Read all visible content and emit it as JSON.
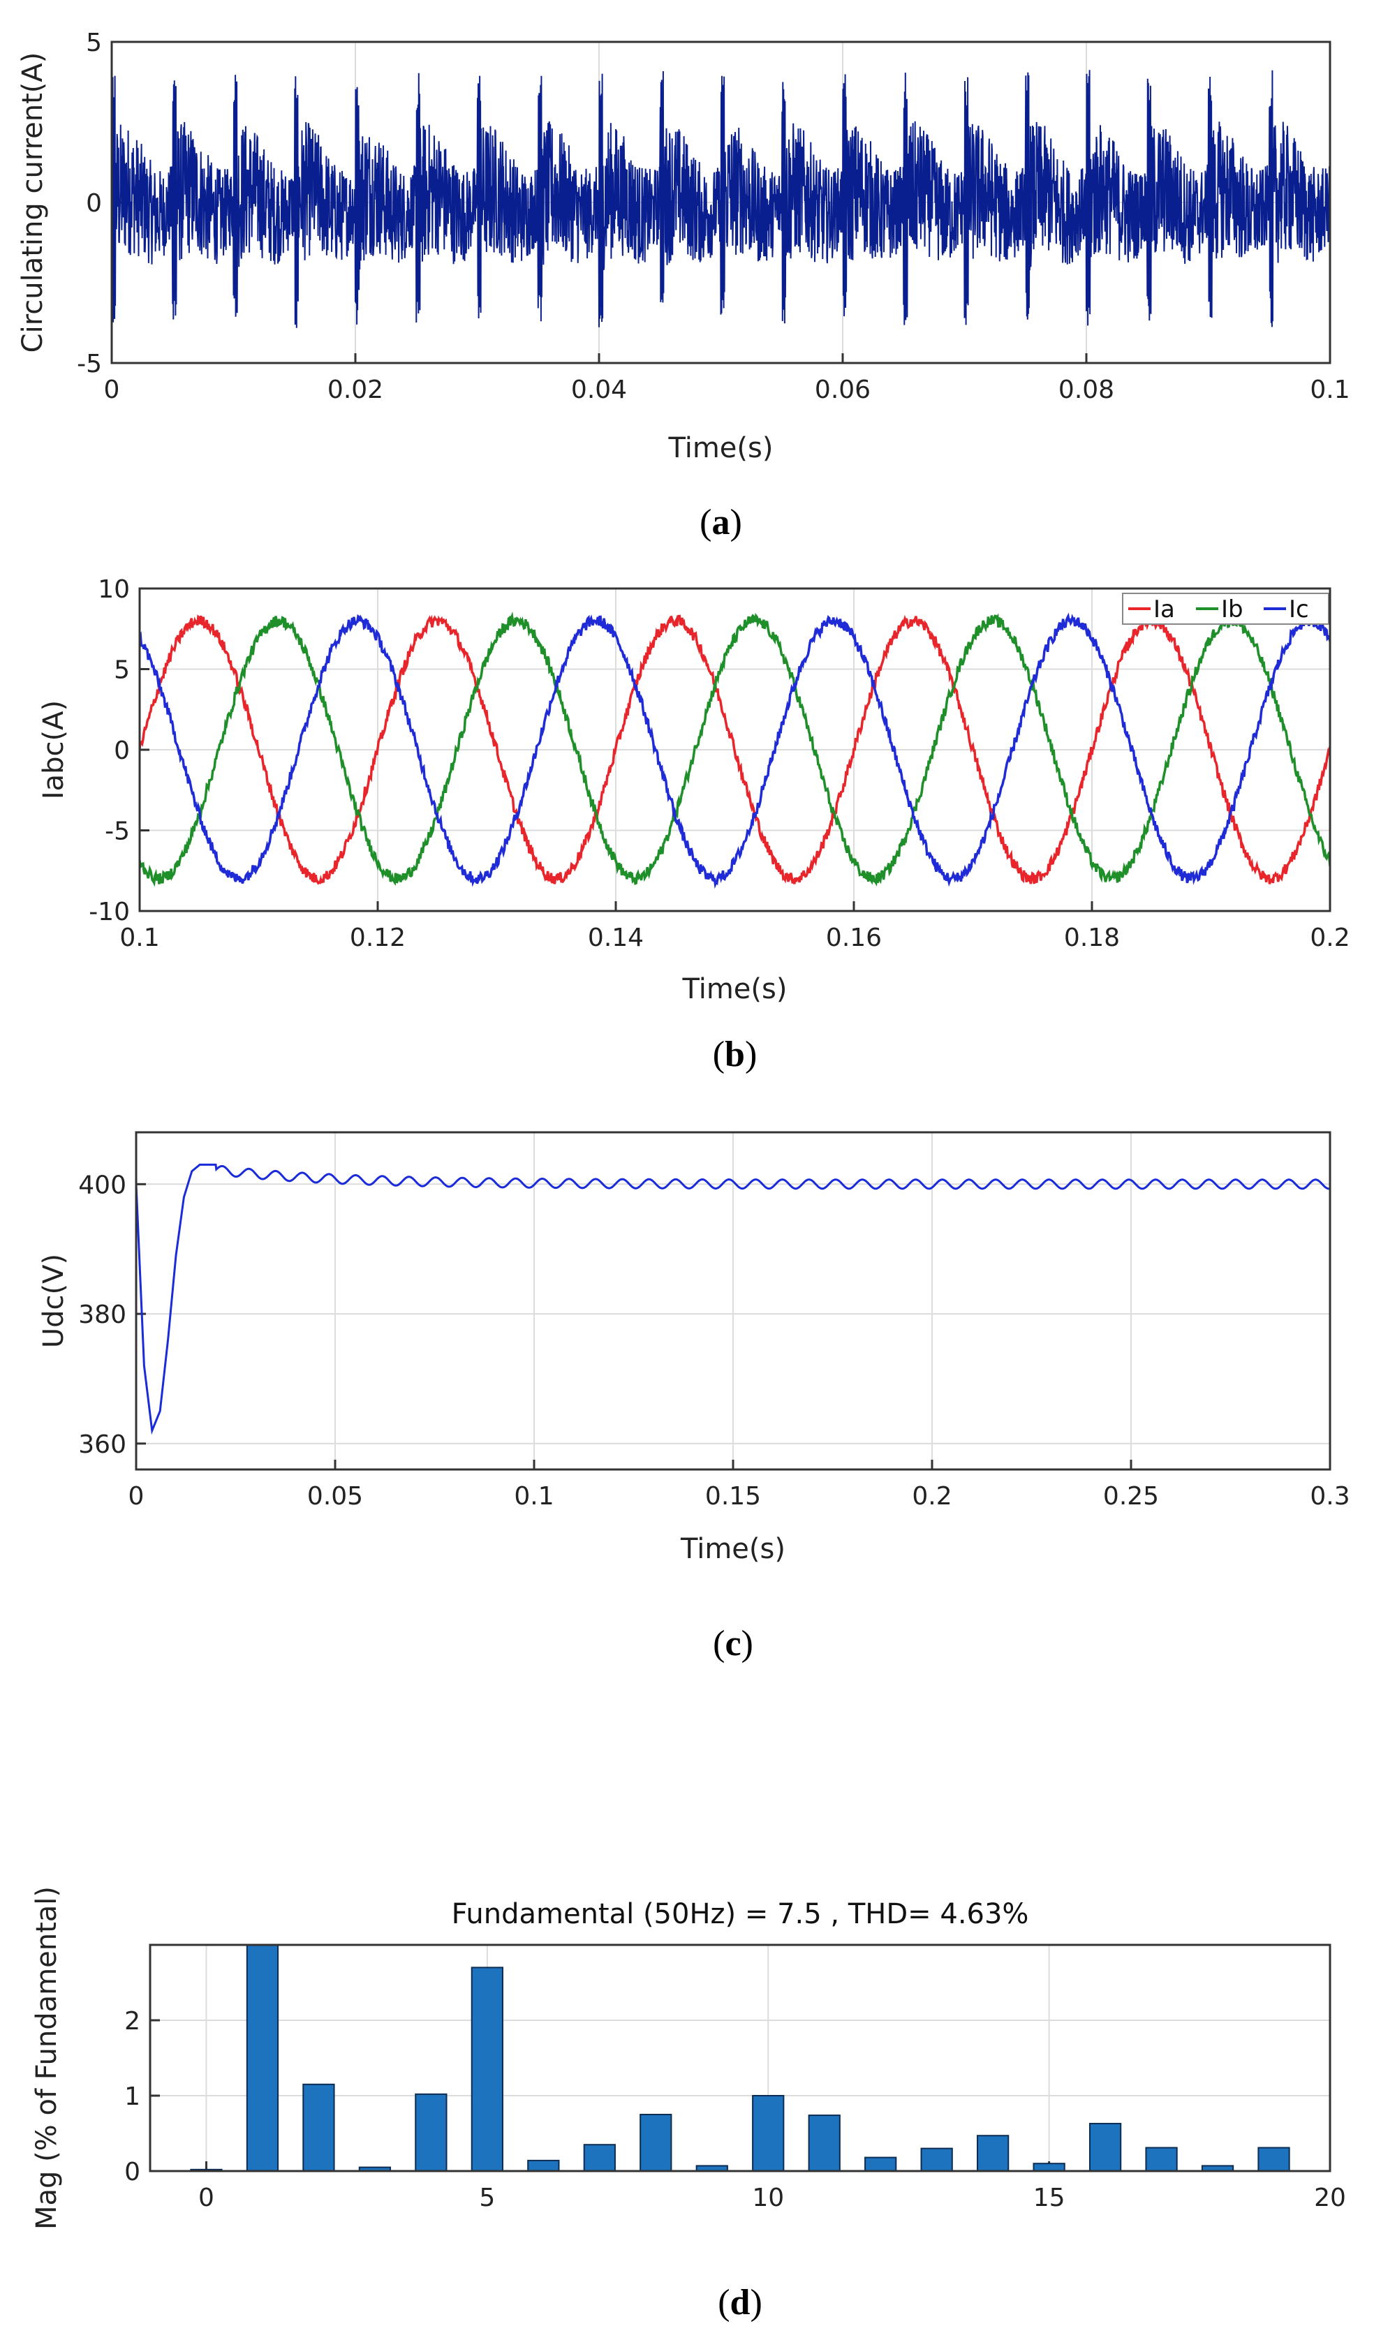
{
  "chart_data": [
    {
      "id": "a",
      "type": "line",
      "caption": "a",
      "title": "",
      "xlabel": "Time(s)",
      "ylabel": "Circulating current(A)",
      "xlim": [
        0,
        0.1
      ],
      "ylim": [
        -5,
        5
      ],
      "xticks": [
        "0",
        "0.02",
        "0.04",
        "0.06",
        "0.08",
        "0.1"
      ],
      "yticks": [
        "-5",
        "0",
        "5"
      ],
      "grid": true,
      "series": [
        {
          "name": "Circulating current",
          "color": "#0a1f8f",
          "description_params": {
            "band_low": -2.0,
            "band_high": 2.0,
            "spike_peak": 4.0,
            "spike_period": 0.005
          }
        }
      ]
    },
    {
      "id": "b",
      "type": "line",
      "caption": "b",
      "title": "",
      "xlabel": "Time(s)",
      "ylabel": "Iabc(A)",
      "xlim": [
        0.1,
        0.2
      ],
      "ylim": [
        -10,
        10
      ],
      "xticks": [
        "0.1",
        "0.12",
        "0.14",
        "0.16",
        "0.18",
        "0.2"
      ],
      "yticks": [
        "-10",
        "-5",
        "0",
        "5",
        "10"
      ],
      "grid": true,
      "legend": [
        "Ia",
        "Ib",
        "Ic"
      ],
      "series": [
        {
          "name": "Ia",
          "color": "#e8252b",
          "amplitude": 8,
          "frequency_hz": 50,
          "phase_deg": 0
        },
        {
          "name": "Ib",
          "color": "#1f8f2a",
          "amplitude": 8,
          "frequency_hz": 50,
          "phase_deg": -120
        },
        {
          "name": "Ic",
          "color": "#1f2bd6",
          "amplitude": 8,
          "frequency_hz": 50,
          "phase_deg": 120
        }
      ]
    },
    {
      "id": "c",
      "type": "line",
      "caption": "c",
      "title": "",
      "xlabel": "Time(s)",
      "ylabel": "Udc(V)",
      "xlim": [
        0,
        0.3
      ],
      "ylim": [
        356,
        408
      ],
      "xticks": [
        "0",
        "0.05",
        "0.1",
        "0.15",
        "0.2",
        "0.25",
        "0.3"
      ],
      "yticks": [
        "360",
        "380",
        "400"
      ],
      "grid": true,
      "series": [
        {
          "name": "Udc",
          "color": "#1a2bd9",
          "x": [
            0,
            0.002,
            0.004,
            0.006,
            0.008,
            0.01,
            0.012,
            0.014,
            0.016,
            0.02
          ],
          "y": [
            400,
            372,
            362,
            365,
            376,
            389,
            398,
            402,
            403,
            403
          ],
          "steady_value": 400,
          "ripple_amplitude": 1,
          "ripple_period": 0.0067
        }
      ]
    },
    {
      "id": "d",
      "type": "bar",
      "caption": "d",
      "title": "Fundamental (50Hz) = 7.5 , THD= 4.63%",
      "xlabel": "",
      "ylabel": "Mag (% of Fundamental)",
      "xlim": [
        -1,
        20
      ],
      "ylim": [
        0,
        3
      ],
      "xticks": [
        "0",
        "5",
        "10",
        "15",
        "20"
      ],
      "yticks": [
        "0",
        "1",
        "2"
      ],
      "grid": true,
      "color": "#1e73be",
      "categories": [
        0,
        1,
        2,
        3,
        4,
        5,
        6,
        7,
        8,
        9,
        10,
        11,
        12,
        13,
        14,
        15,
        16,
        17,
        18,
        19
      ],
      "values": [
        0.02,
        3.0,
        1.15,
        0.05,
        1.02,
        2.7,
        0.14,
        0.35,
        0.75,
        0.07,
        1.0,
        0.74,
        0.18,
        0.3,
        0.47,
        0.1,
        0.63,
        0.31,
        0.07,
        0.31
      ]
    }
  ]
}
